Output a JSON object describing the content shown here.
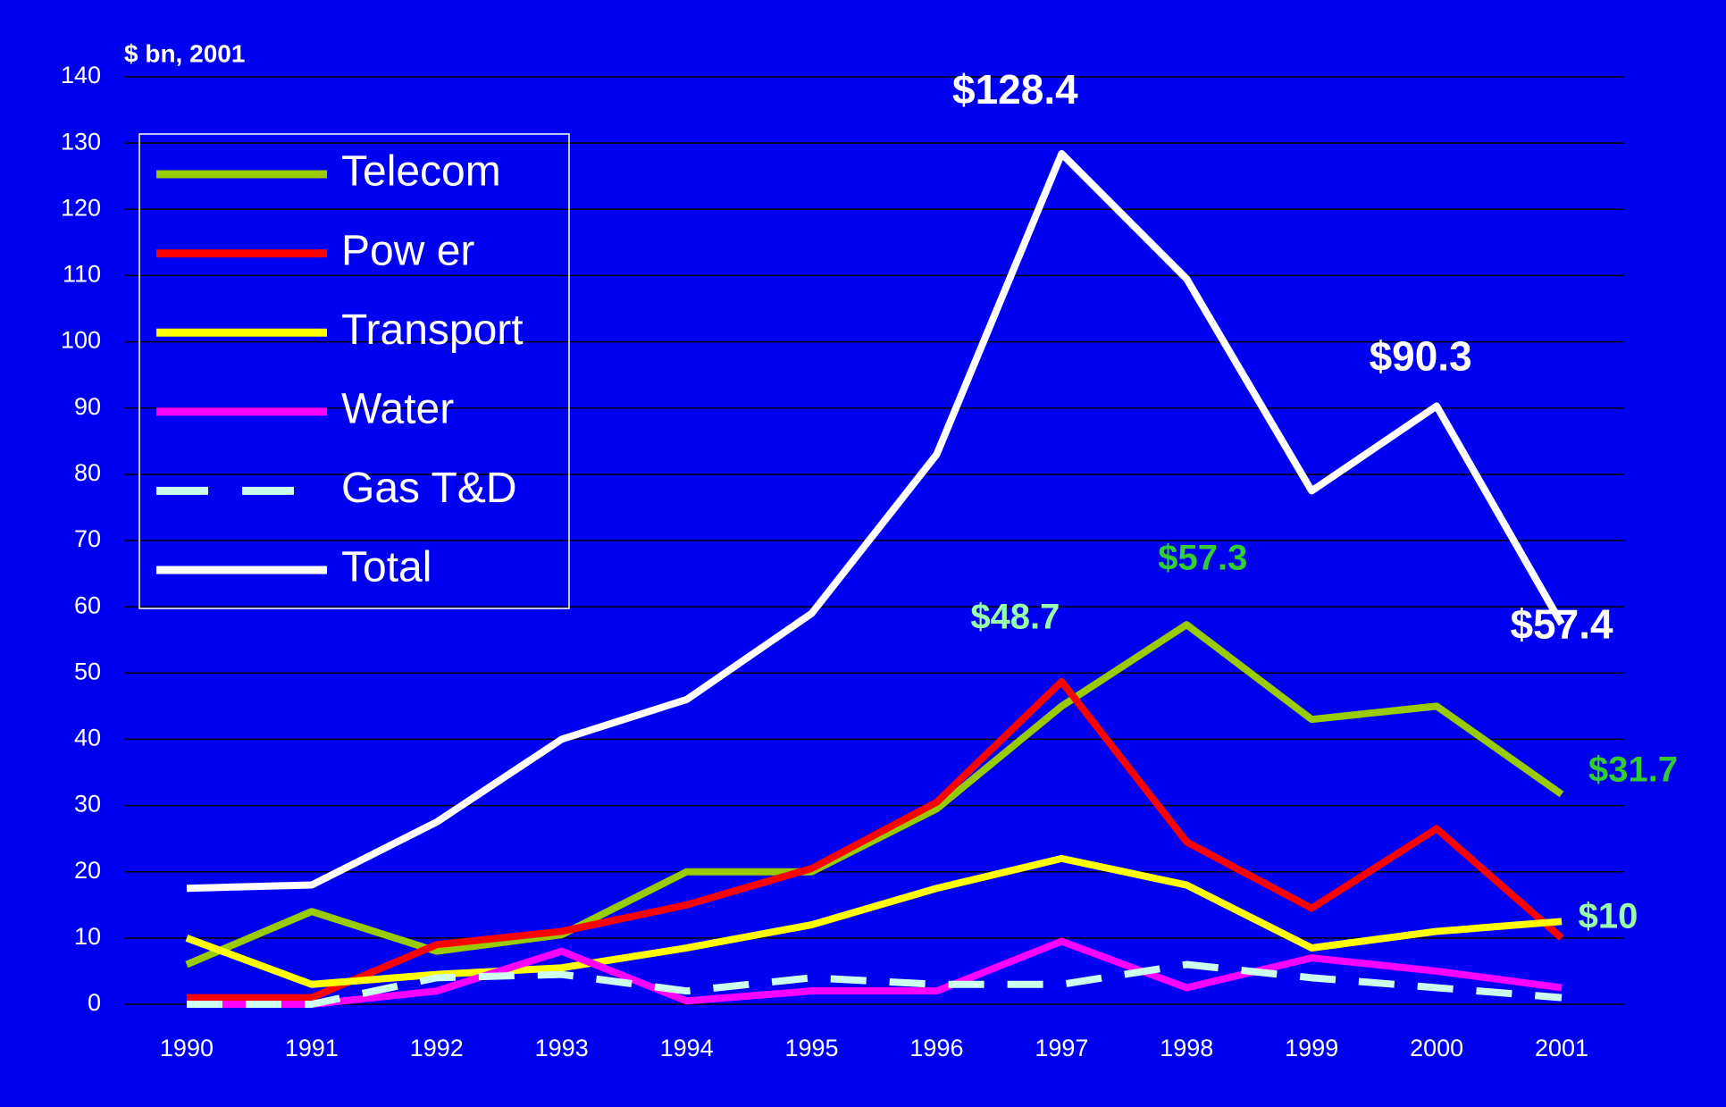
{
  "chart_data": {
    "type": "line",
    "y_axis_label": "$ bn, 2001",
    "categories": [
      "1990",
      "1991",
      "1992",
      "1993",
      "1994",
      "1995",
      "1996",
      "1997",
      "1998",
      "1999",
      "2000",
      "2001"
    ],
    "ylim": [
      0,
      140
    ],
    "yticks": [
      0,
      10,
      20,
      30,
      40,
      50,
      60,
      70,
      80,
      90,
      100,
      110,
      120,
      130,
      140
    ],
    "grid": true,
    "legend": "upper left",
    "background": "#0000f0",
    "series": [
      {
        "name": "Telecom",
        "color": "#99cc00",
        "label_color": "#33cc33",
        "values": [
          6,
          14,
          8,
          10.5,
          20,
          20,
          29.5,
          45,
          57.3,
          43,
          45,
          31.7
        ],
        "value_labels": [
          null,
          null,
          null,
          null,
          null,
          null,
          null,
          null,
          "$57.3",
          null,
          null,
          "$31.7"
        ]
      },
      {
        "name": "Pow er",
        "color": "#ff0000",
        "label_color": "#99ffaa",
        "values": [
          1,
          1,
          9,
          11,
          15,
          20.5,
          30.5,
          48.7,
          24.5,
          14.5,
          26.5,
          10
        ],
        "value_labels": [
          null,
          null,
          null,
          null,
          null,
          null,
          null,
          "$48.7",
          null,
          null,
          null,
          "$10"
        ]
      },
      {
        "name": "Transport",
        "color": "#ffff00",
        "values": [
          10,
          3,
          4.5,
          5.5,
          8.5,
          12,
          17.5,
          22,
          18,
          8.5,
          11,
          12.5
        ]
      },
      {
        "name": "Water",
        "color": "#ff00ff",
        "values": [
          0,
          0,
          2,
          8,
          0.5,
          2,
          2,
          9.5,
          2.5,
          7,
          5,
          2.5
        ]
      },
      {
        "name": "Gas T&D",
        "color": "#ccffee",
        "dashed": true,
        "values": [
          0,
          0,
          4,
          4.5,
          2,
          4,
          3,
          3,
          6,
          4,
          2.5,
          1
        ]
      },
      {
        "name": "Total",
        "color": "#ffffff",
        "label_color": "#ffffff",
        "values": [
          17.5,
          18,
          27.5,
          40,
          46,
          59,
          83,
          128.4,
          109.5,
          77.5,
          90.3,
          57.4
        ],
        "value_labels": [
          null,
          null,
          null,
          null,
          null,
          null,
          null,
          "$128.4",
          null,
          null,
          "$90.3",
          "$57.4"
        ]
      }
    ]
  }
}
